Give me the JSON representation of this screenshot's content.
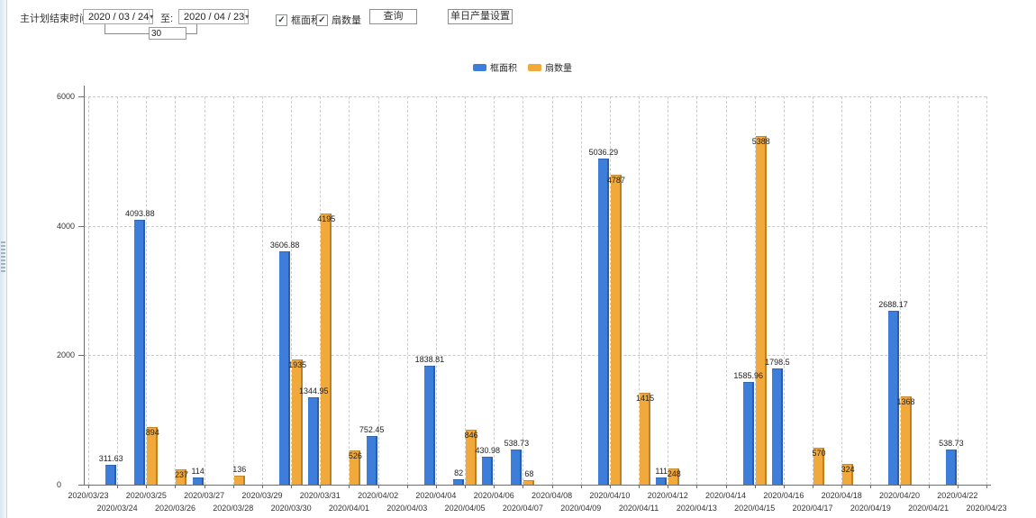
{
  "toolbar": {
    "plan_end_label": "主计划结束时间:",
    "date_from": "2020 / 03 / 24",
    "to_label": "至:",
    "date_to": "2020 / 04 / 23",
    "interval_days": "30",
    "checkbox_frame_area": "框面积",
    "checkbox_sash_count": "扇数量",
    "query_button": "查询",
    "daily_output_button": "单日产量设置"
  },
  "legend": {
    "items": [
      {
        "label": "框面积",
        "color": "#3e7edb"
      },
      {
        "label": "扇数量",
        "color": "#f2a93b"
      }
    ]
  },
  "chart_data": {
    "type": "bar",
    "title": "",
    "xlabel": "",
    "ylabel": "",
    "ylim": [
      0,
      6000
    ],
    "yticks": [
      0,
      2000,
      4000,
      6000
    ],
    "grid": true,
    "legend_position": "top-center",
    "categories": [
      "2020/03/23",
      "2020/03/24",
      "2020/03/25",
      "2020/03/26",
      "2020/03/27",
      "2020/03/28",
      "2020/03/29",
      "2020/03/30",
      "2020/03/31",
      "2020/04/01",
      "2020/04/02",
      "2020/04/03",
      "2020/04/04",
      "2020/04/05",
      "2020/04/06",
      "2020/04/07",
      "2020/04/08",
      "2020/04/09",
      "2020/04/10",
      "2020/04/11",
      "2020/04/12",
      "2020/04/13",
      "2020/04/14",
      "2020/04/15",
      "2020/04/16",
      "2020/04/17",
      "2020/04/18",
      "2020/04/19",
      "2020/04/20",
      "2020/04/21",
      "2020/04/22",
      "2020/04/23"
    ],
    "series": [
      {
        "name": "框面积",
        "color": "#3e7edb",
        "edge_color": "#2a5daf",
        "values": [
          null,
          311.63,
          4093.88,
          null,
          114,
          null,
          null,
          3606.88,
          1344.95,
          null,
          752.45,
          null,
          1838.81,
          82,
          430.98,
          538.73,
          null,
          null,
          5036.29,
          null,
          111,
          null,
          null,
          1585.96,
          1798.5,
          null,
          null,
          null,
          2688.17,
          null,
          538.73,
          null
        ]
      },
      {
        "name": "扇数量",
        "color": "#f2a93b",
        "edge_color": "#c17f1f",
        "values": [
          null,
          null,
          894,
          237,
          null,
          136,
          null,
          1935,
          4195,
          526,
          null,
          null,
          null,
          846,
          null,
          68,
          null,
          null,
          4787,
          1415,
          248,
          null,
          null,
          5388,
          null,
          570,
          324,
          null,
          1368,
          null,
          null,
          null
        ]
      }
    ]
  }
}
